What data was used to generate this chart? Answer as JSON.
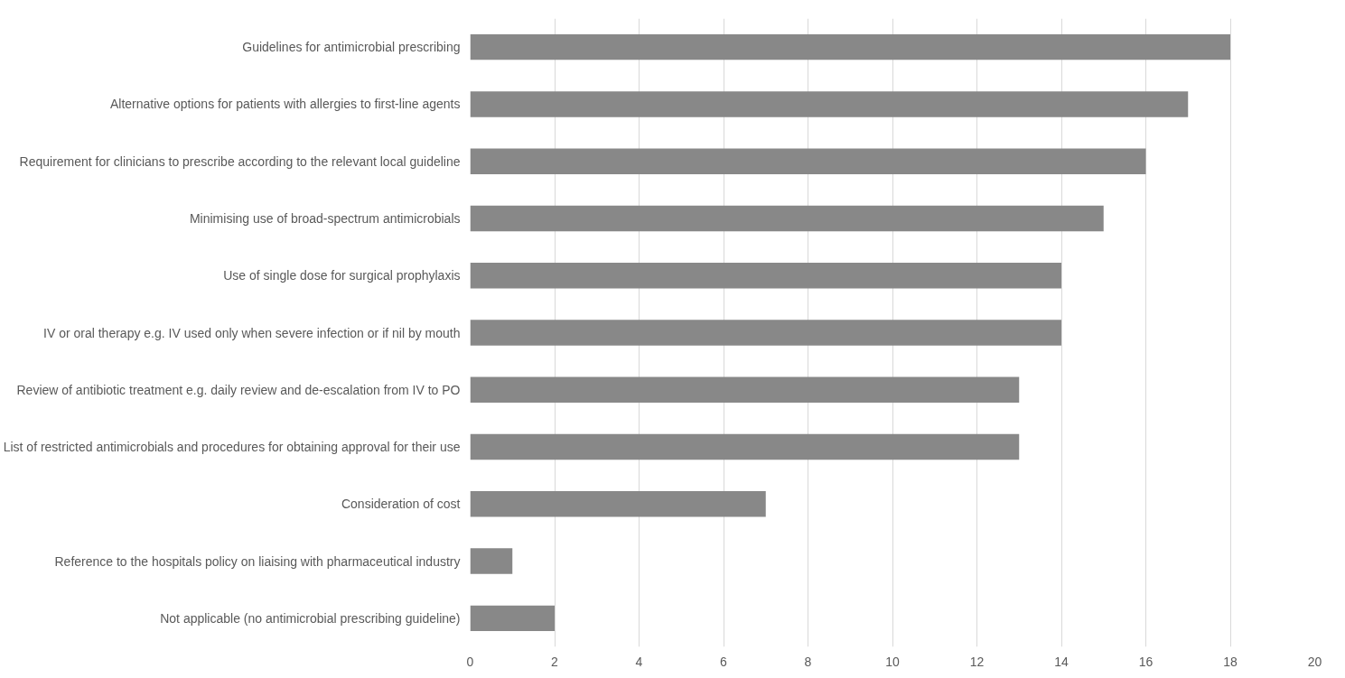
{
  "chart_data": {
    "type": "bar",
    "orientation": "horizontal",
    "categories": [
      "Guidelines for antimicrobial prescribing",
      "Alternative options for patients with allergies to first-line agents",
      "Requirement for clinicians to prescribe according to the relevant local guideline",
      "Minimising use of broad-spectrum antimicrobials",
      "Use of single dose for surgical prophylaxis",
      "IV or oral therapy e.g. IV used only when severe infection or if nil by mouth",
      "Review of antibiotic treatment e.g. daily review and de-escalation from IV to PO",
      "List of restricted antimicrobials and procedures for obtaining approval for their use",
      "Consideration of cost",
      "Reference to the hospitals policy on liaising with pharmaceutical industry",
      "Not applicable (no antimicrobial prescribing guideline)"
    ],
    "values": [
      18,
      17,
      16,
      15,
      14,
      14,
      13,
      13,
      7,
      1,
      2
    ],
    "color": "#888888",
    "xlim": [
      0,
      20
    ],
    "xticks": [
      0,
      2,
      4,
      6,
      8,
      10,
      12,
      14,
      16,
      18,
      20
    ],
    "grid": "x"
  }
}
